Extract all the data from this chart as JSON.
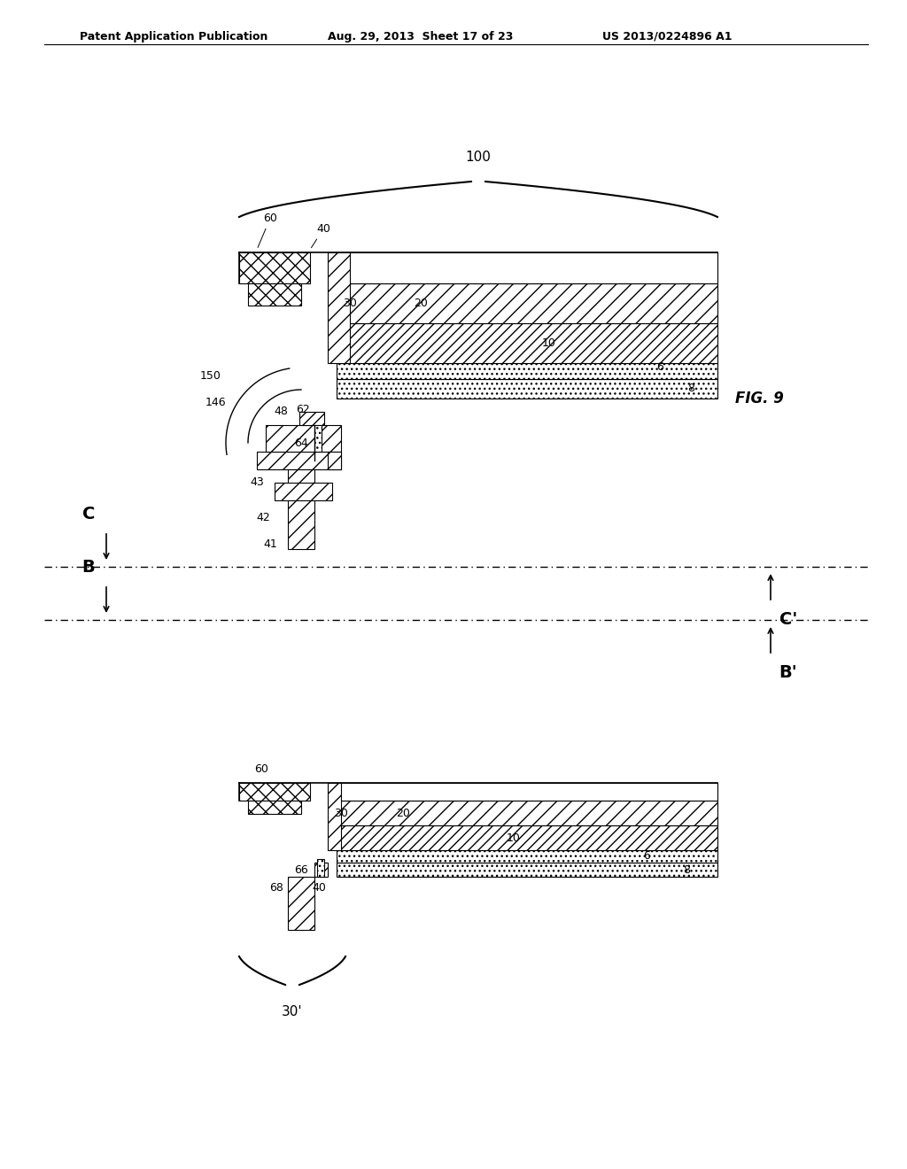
{
  "header_left": "Patent Application Publication",
  "header_mid": "Aug. 29, 2013  Sheet 17 of 23",
  "header_right": "US 2013/0224896 A1",
  "fig_label": "FIG. 9",
  "brace_label": "100",
  "brace2_label": "30'",
  "background": "#ffffff",
  "line_color": "#000000"
}
